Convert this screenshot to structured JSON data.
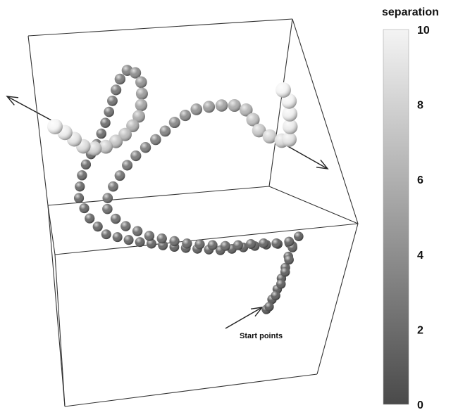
{
  "chart_data": {
    "type": "scatter",
    "title": "",
    "annotation": "Start points",
    "colorbar": {
      "label": "separation",
      "range": [
        0,
        10
      ],
      "ticks": [
        "10",
        "8",
        "6",
        "4",
        "2",
        "0"
      ],
      "colormap": [
        "#4a4a4a",
        "#f4f4f4"
      ]
    },
    "series": [
      {
        "values": [
          0.3,
          0.3,
          0.4,
          0.4,
          0.5,
          0.5,
          0.5,
          0.6,
          0.6,
          0.6,
          0.7,
          0.7,
          0.7,
          0.8,
          0.8,
          0.8,
          0.9,
          0.9,
          0.9,
          1.0,
          1.0,
          1.0,
          1.1,
          1.1,
          1.1,
          1.2,
          1.2,
          1.2,
          1.3,
          1.3,
          1.4,
          1.4,
          1.5,
          1.5,
          1.6,
          1.6,
          1.8,
          2.0,
          2.3,
          2.6,
          3.0,
          3.5,
          4.0,
          4.5,
          5.0,
          5.5,
          6.0,
          6.5,
          7.0,
          7.5,
          8.0,
          8.5,
          9.0,
          9.5,
          10.0
        ]
      },
      {
        "values": [
          0.3,
          0.4,
          0.5,
          0.6,
          0.7,
          0.8,
          0.9,
          1.0,
          1.0,
          1.1,
          1.1,
          1.2,
          1.2,
          1.3,
          1.3,
          1.4,
          1.4,
          1.5,
          1.5,
          1.6,
          1.6,
          1.7,
          1.8,
          1.9,
          2.0,
          2.2,
          2.4,
          2.6,
          2.8,
          3.0,
          3.3,
          3.6,
          4.0,
          4.5,
          5.0,
          5.6,
          6.2,
          6.8,
          7.4,
          8.0,
          8.5,
          9.0,
          9.4,
          9.7,
          9.9,
          10.0
        ]
      }
    ]
  }
}
